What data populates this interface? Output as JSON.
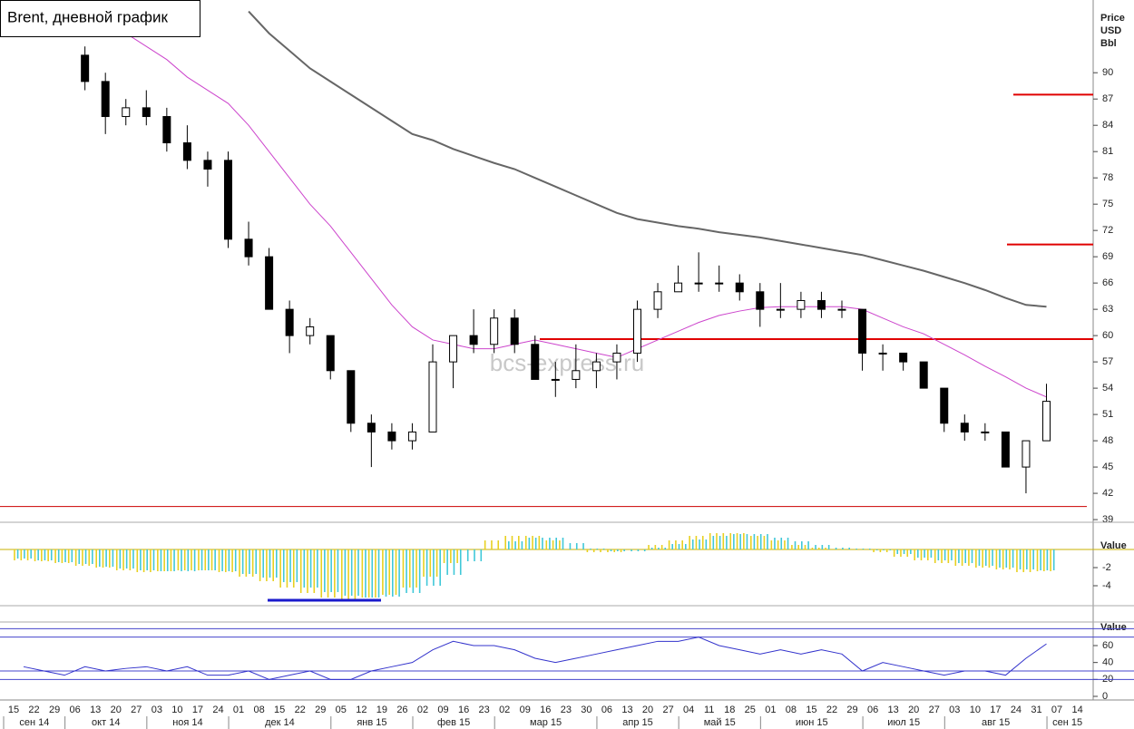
{
  "title": "Brent, дневной график",
  "watermark": "bcs-express.ru",
  "chart_data": [
    {
      "type": "candlestick",
      "y_label": [
        "Price",
        "USD",
        "Bbl"
      ],
      "categories": [
        "15",
        "22",
        "29",
        "06",
        "13",
        "20",
        "27",
        "03",
        "10",
        "17",
        "24",
        "01",
        "08",
        "15",
        "22",
        "29",
        "05",
        "12",
        "19",
        "26",
        "02",
        "09",
        "16",
        "23",
        "02",
        "09",
        "16",
        "23",
        "30",
        "06",
        "13",
        "20",
        "27",
        "04",
        "11",
        "18",
        "25",
        "01",
        "08",
        "15",
        "22",
        "29",
        "06",
        "13",
        "20",
        "27",
        "03",
        "10",
        "17",
        "24",
        "31",
        "07",
        "14"
      ],
      "months": [
        "сен 14",
        "окт 14",
        "ноя 14",
        "дек 14",
        "янв 15",
        "фев 15",
        "мар 15",
        "апр 15",
        "май 15",
        "июн 15",
        "июл 15",
        "авг 15",
        "сен 15"
      ],
      "open": [
        null,
        null,
        null,
        92,
        89,
        85,
        86,
        85,
        82,
        80,
        80,
        71,
        69,
        63,
        60,
        60,
        56,
        50,
        49,
        48,
        49,
        57,
        60,
        59,
        62,
        59,
        55,
        55,
        56,
        57,
        58,
        63,
        65,
        66,
        66,
        66,
        65,
        63,
        63,
        64,
        63,
        63,
        58,
        58,
        57,
        54,
        50,
        49,
        49,
        45,
        48,
        null,
        null
      ],
      "high": [
        null,
        null,
        null,
        93,
        90,
        87,
        88,
        86,
        84,
        81,
        81,
        73,
        70,
        64,
        62,
        60,
        56,
        51,
        50,
        50,
        59,
        60,
        63,
        63,
        63,
        60,
        57,
        59,
        58,
        59,
        64,
        66,
        68,
        69.5,
        68,
        67,
        66,
        66,
        65,
        65,
        64,
        63,
        59,
        58,
        57,
        54,
        51,
        50,
        49,
        48,
        54.5,
        null,
        null
      ],
      "low": [
        null,
        null,
        null,
        88,
        83,
        84,
        84,
        81,
        79,
        77,
        70,
        68,
        63,
        58,
        59,
        55,
        49,
        45,
        47,
        47,
        49,
        54,
        58,
        58,
        58,
        55,
        53,
        54,
        54,
        55,
        57,
        62,
        65,
        65,
        65,
        64,
        61,
        62,
        62,
        62,
        62,
        56,
        56,
        56,
        54,
        49,
        48,
        48,
        45,
        42,
        48,
        null,
        null
      ],
      "close": [
        null,
        null,
        null,
        89,
        85,
        86,
        85,
        82,
        80,
        79,
        71,
        69,
        63,
        60,
        61,
        56,
        50,
        49,
        48,
        49,
        57,
        60,
        59,
        62,
        59,
        55,
        55,
        56,
        57,
        58,
        63,
        65,
        66,
        66,
        66,
        65,
        63,
        63,
        64,
        63,
        63,
        58,
        58,
        57,
        54,
        50,
        49,
        49,
        45,
        48,
        52.5,
        null,
        null
      ],
      "series": [
        {
          "color": "#cc44cc",
          "values": [
            null,
            null,
            null,
            null,
            null,
            94.5,
            93,
            91.5,
            89.5,
            88,
            86.5,
            84,
            81,
            78,
            75,
            72.5,
            69.5,
            66.5,
            63.5,
            61,
            59.5,
            59,
            58.5,
            58.5,
            59,
            59.5,
            59,
            58.5,
            58,
            57.5,
            58.5,
            59.5,
            60.5,
            61.5,
            62.3,
            62.8,
            63.2,
            63.3,
            63.3,
            63.3,
            63.3,
            63,
            62,
            61,
            60.2,
            59,
            57.8,
            56.5,
            55.3,
            54,
            53,
            null,
            null
          ]
        },
        {
          "color": "#666666",
          "values": [
            null,
            null,
            null,
            null,
            null,
            null,
            null,
            null,
            null,
            null,
            null,
            97,
            94.5,
            92.5,
            90.5,
            89,
            87.5,
            86,
            84.5,
            83,
            82.3,
            81.3,
            80.5,
            79.7,
            79,
            78,
            77,
            76,
            75,
            74,
            73.3,
            72.9,
            72.5,
            72.2,
            71.8,
            71.5,
            71.2,
            70.8,
            70.4,
            70,
            69.6,
            69.2,
            68.6,
            68,
            67.4,
            66.7,
            66,
            65.2,
            64.3,
            63.5,
            63.3,
            null,
            null
          ]
        }
      ],
      "levels": [
        {
          "value": 87.5,
          "color": "#e00000"
        },
        {
          "value": 70.4,
          "color": "#e00000"
        },
        {
          "value": 59.6,
          "color": "#e00000"
        },
        {
          "value": 40.5,
          "color": "#cc0000"
        }
      ],
      "ylim": [
        38.8,
        98.3
      ],
      "yticks": [
        39,
        42,
        45,
        48,
        51,
        54,
        57,
        60,
        63,
        66,
        69,
        72,
        75,
        78,
        81,
        84,
        87,
        90
      ]
    },
    {
      "type": "bar",
      "y_label": "Value",
      "series": [
        {
          "color": "#e8d020",
          "values": [
            -1.2,
            -1.3,
            -1.5,
            -1.8,
            -2.0,
            -2.3,
            -2.5,
            -2.4,
            -2.3,
            -2.3,
            -2.5,
            -3.0,
            -3.5,
            -4.2,
            -4.8,
            -5.3,
            -5.5,
            -5.3,
            -5.0,
            -4.2,
            -3.0,
            -1.5,
            0.0,
            1.0,
            1.5,
            1.5,
            1.0,
            0.0,
            -0.3,
            -0.3,
            0.0,
            0.5,
            1.0,
            1.5,
            1.8,
            1.8,
            1.5,
            1.0,
            0.5,
            0.2,
            0.0,
            0.0,
            -0.3,
            -0.8,
            -1.2,
            -1.5,
            -1.8,
            -2.0,
            -2.2,
            -2.5,
            -2.4,
            null,
            null
          ]
        },
        {
          "color": "#40c8d8",
          "values": [
            -1.0,
            -1.2,
            -1.4,
            -1.6,
            -1.9,
            -2.1,
            -2.3,
            -2.4,
            -2.4,
            -2.3,
            -2.4,
            -2.7,
            -3.1,
            -3.6,
            -4.2,
            -4.7,
            -5.1,
            -5.3,
            -5.2,
            -4.8,
            -4.0,
            -2.8,
            -1.3,
            0.0,
            0.9,
            1.3,
            1.3,
            0.7,
            0.1,
            -0.2,
            -0.2,
            0.2,
            0.6,
            1.1,
            1.5,
            1.7,
            1.7,
            1.3,
            0.9,
            0.5,
            0.2,
            0.1,
            -0.1,
            -0.5,
            -0.9,
            -1.2,
            -1.5,
            -1.8,
            -2.0,
            -2.2,
            -2.3,
            null,
            null
          ]
        }
      ],
      "marker_line": {
        "value": -5.6,
        "color": "#1a1acc"
      },
      "ylim": [
        -6.2,
        2.8
      ],
      "yticks": [
        -2,
        -4
      ]
    },
    {
      "type": "line",
      "y_label": "Value",
      "color": "#3333cc",
      "values": [
        35,
        30,
        25,
        35,
        30,
        33,
        35,
        30,
        35,
        25,
        25,
        30,
        20,
        25,
        30,
        20,
        20,
        30,
        35,
        40,
        55,
        65,
        60,
        60,
        55,
        45,
        40,
        45,
        50,
        55,
        60,
        65,
        65,
        70,
        60,
        55,
        50,
        55,
        50,
        55,
        50,
        30,
        40,
        35,
        30,
        25,
        30,
        30,
        25,
        45,
        62,
        null,
        null
      ],
      "levels": [
        20,
        30,
        70,
        80
      ],
      "ylim": [
        -4.3,
        85.7
      ],
      "yticks": [
        0,
        20,
        40,
        60
      ]
    }
  ]
}
